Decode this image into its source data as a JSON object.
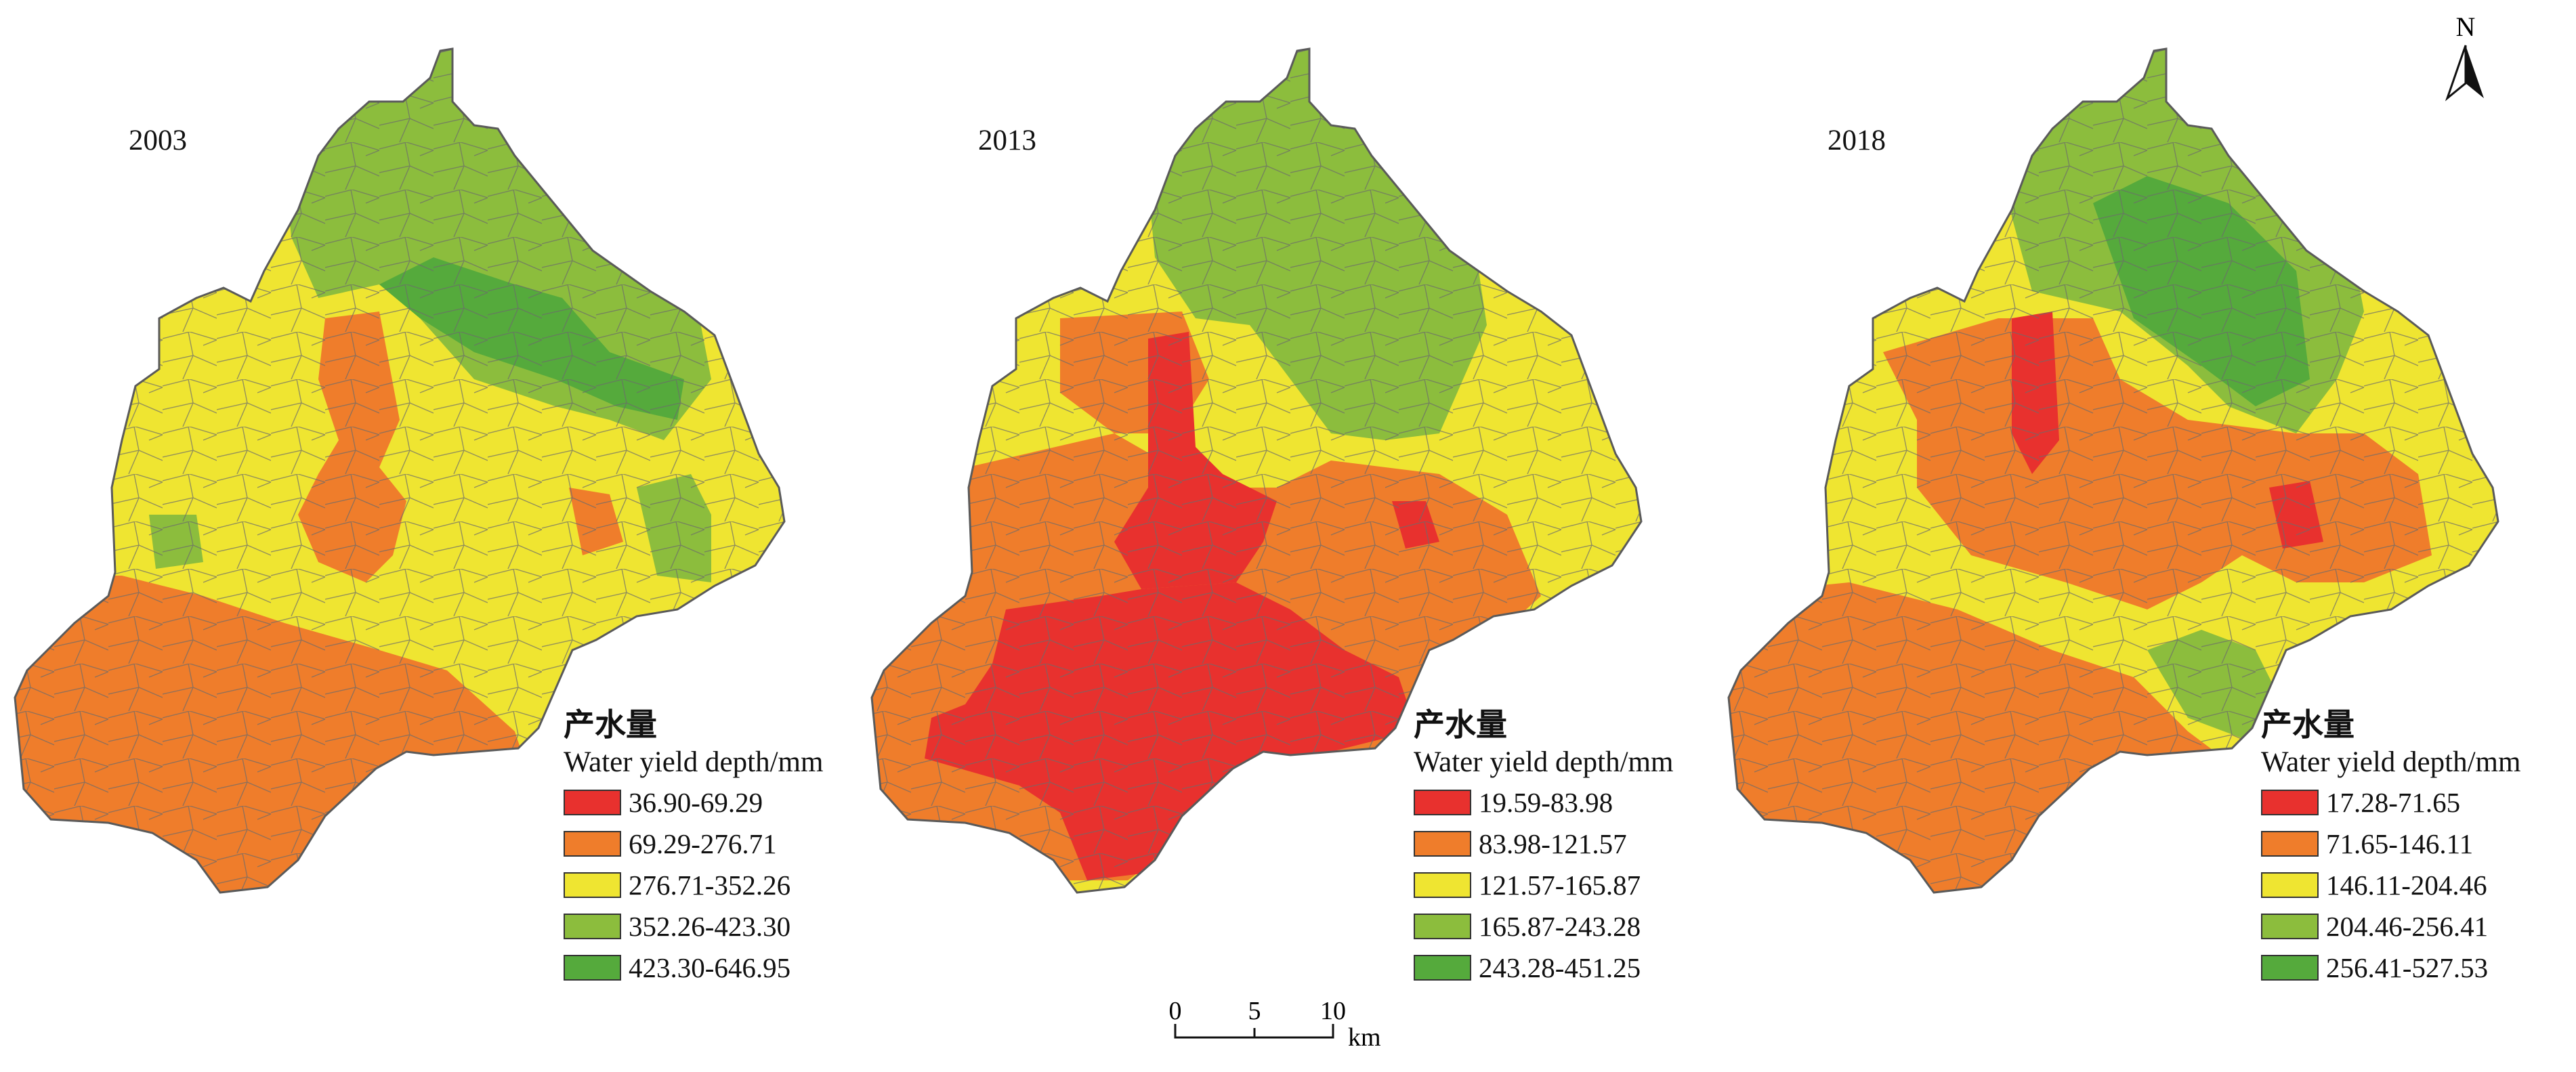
{
  "colors": {
    "class1": "#e8312e",
    "class2": "#ef7d2b",
    "class3": "#efe531",
    "class4": "#8cbd3d",
    "class5": "#55aa3c",
    "boundary": "#6b6b6b"
  },
  "panels": [
    {
      "year": "2003",
      "legend": {
        "title_cn": "产水量",
        "title_en": "Water yield depth/mm",
        "classes": [
          {
            "range": "36.90-69.29",
            "color": "#e8312e"
          },
          {
            "range": "69.29-276.71",
            "color": "#ef7d2b"
          },
          {
            "range": "276.71-352.26",
            "color": "#efe531"
          },
          {
            "range": "352.26-423.30",
            "color": "#8cbd3d"
          },
          {
            "range": "423.30-646.95",
            "color": "#55aa3c"
          }
        ]
      }
    },
    {
      "year": "2013",
      "legend": {
        "title_cn": "产水量",
        "title_en": "Water yield depth/mm",
        "classes": [
          {
            "range": "19.59-83.98",
            "color": "#e8312e"
          },
          {
            "range": "83.98-121.57",
            "color": "#ef7d2b"
          },
          {
            "range": "121.57-165.87",
            "color": "#efe531"
          },
          {
            "range": "165.87-243.28",
            "color": "#8cbd3d"
          },
          {
            "range": "243.28-451.25",
            "color": "#55aa3c"
          }
        ]
      }
    },
    {
      "year": "2018",
      "legend": {
        "title_cn": "产水量",
        "title_en": "Water yield depth/mm",
        "classes": [
          {
            "range": "17.28-71.65",
            "color": "#e8312e"
          },
          {
            "range": "71.65-146.11",
            "color": "#ef7d2b"
          },
          {
            "range": "146.11-204.46",
            "color": "#efe531"
          },
          {
            "range": "204.46-256.41",
            "color": "#8cbd3d"
          },
          {
            "range": "256.41-527.53",
            "color": "#55aa3c"
          }
        ]
      }
    }
  ],
  "north_arrow": {
    "label": "N"
  },
  "scale_bar": {
    "ticks": [
      "0",
      "5",
      "10"
    ],
    "unit": "km"
  }
}
